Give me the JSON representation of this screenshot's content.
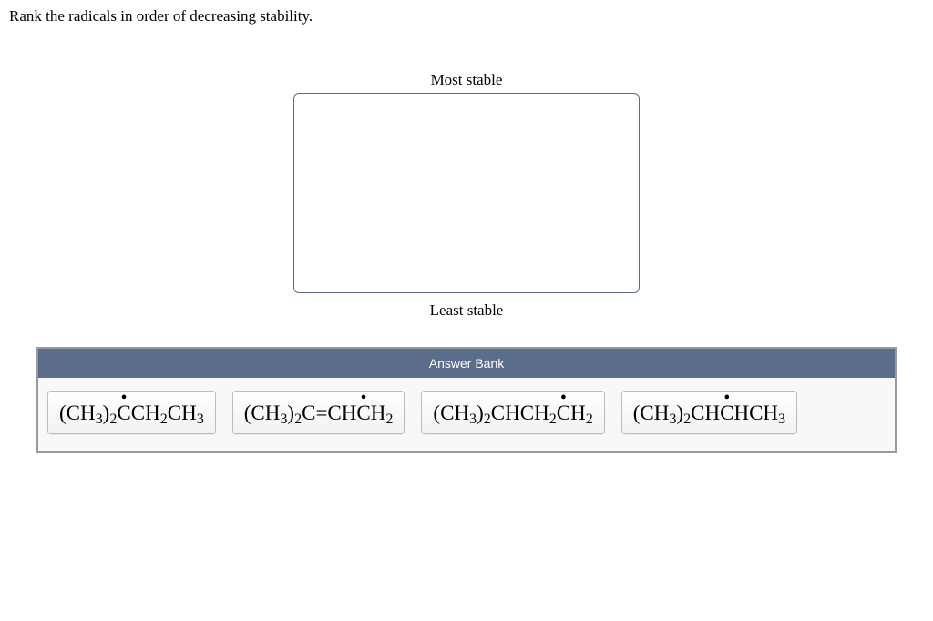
{
  "prompt": "Rank the radicals in order of decreasing stability.",
  "rank_top_label": "Most stable",
  "rank_bottom_label": "Least stable",
  "answer_bank_label": "Answer Bank",
  "tiles": [
    {
      "segments": [
        {
          "t": "(CH"
        },
        {
          "t": "3",
          "sub": true
        },
        {
          "t": ")"
        },
        {
          "t": "2",
          "sub": true
        },
        {
          "t": "C",
          "radical": true
        },
        {
          "t": "CH"
        },
        {
          "t": "2",
          "sub": true
        },
        {
          "t": "CH"
        },
        {
          "t": "3",
          "sub": true
        }
      ]
    },
    {
      "segments": [
        {
          "t": "(CH"
        },
        {
          "t": "3",
          "sub": true
        },
        {
          "t": ")"
        },
        {
          "t": "2",
          "sub": true
        },
        {
          "t": "C=CH"
        },
        {
          "t": "C",
          "radical": true
        },
        {
          "t": "H"
        },
        {
          "t": "2",
          "sub": true
        }
      ]
    },
    {
      "segments": [
        {
          "t": "(CH"
        },
        {
          "t": "3",
          "sub": true
        },
        {
          "t": ")"
        },
        {
          "t": "2",
          "sub": true
        },
        {
          "t": "CHCH"
        },
        {
          "t": "2",
          "sub": true
        },
        {
          "t": "C",
          "radical": true
        },
        {
          "t": "H"
        },
        {
          "t": "2",
          "sub": true
        }
      ]
    },
    {
      "segments": [
        {
          "t": "(CH"
        },
        {
          "t": "3",
          "sub": true
        },
        {
          "t": ")"
        },
        {
          "t": "2",
          "sub": true
        },
        {
          "t": "CH"
        },
        {
          "t": "C",
          "radical": true
        },
        {
          "t": "HCH"
        },
        {
          "t": "3",
          "sub": true
        }
      ]
    }
  ],
  "colors": {
    "accent": "#5a6e8c",
    "tile_border": "#bcbcbc",
    "bank_bg": "#f8f8f8",
    "bank_border": "#9a9a9a"
  }
}
